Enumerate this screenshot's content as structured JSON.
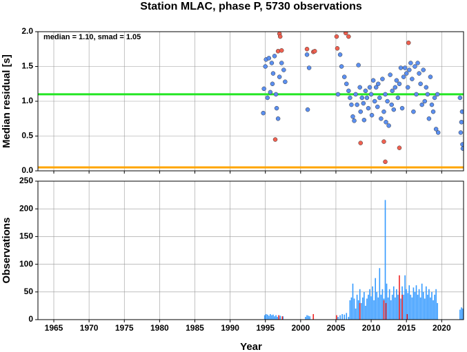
{
  "title": "Station MLAC, phase P, 5730 observations",
  "x_label": "Year",
  "chart_data": [
    {
      "type": "scatter",
      "y_label": "Median residual [s]",
      "annotation": "median = 1.10, smad = 1.05",
      "xlim": [
        1962.75,
        2023.1
      ],
      "ylim": [
        0,
        2
      ],
      "xticks": [
        1965,
        1970,
        1975,
        1980,
        1985,
        1990,
        1995,
        2000,
        2005,
        2010,
        2015,
        2020
      ],
      "yticks": [
        {
          "value": 0,
          "label": "0.0"
        },
        {
          "value": 0.5,
          "label": "0.5"
        },
        {
          "value": 1,
          "label": "1.0"
        },
        {
          "value": 1.5,
          "label": "1.5"
        },
        {
          "value": 2,
          "label": "2.0"
        }
      ],
      "grid": true,
      "hlines": [
        {
          "value": 1.1,
          "color": "#22e622"
        },
        {
          "value": 0.05,
          "color": "#ffa500"
        }
      ],
      "series": [
        {
          "color": "#5b8ff0",
          "x": [
            1994.7,
            1994.8,
            1995.0,
            1995.1,
            1995.3,
            1995.5,
            1995.7,
            1995.9,
            1996.0,
            1996.1,
            1996.3,
            1996.5,
            1996.6,
            1996.8,
            1997.0,
            1997.3,
            1997.6,
            1997.8,
            2000.9,
            2001.0,
            2001.2,
            2005.3,
            2005.6,
            2005.8,
            2006.2,
            2006.5,
            2006.8,
            2007.0,
            2007.2,
            2007.4,
            2007.6,
            2007.8,
            2008.0,
            2008.2,
            2008.4,
            2008.5,
            2008.7,
            2008.9,
            2009.0,
            2009.2,
            2009.4,
            2009.6,
            2009.8,
            2010.0,
            2010.1,
            2010.3,
            2010.5,
            2010.7,
            2010.9,
            2011.0,
            2011.2,
            2011.4,
            2011.6,
            2011.8,
            2012.0,
            2012.1,
            2012.3,
            2012.5,
            2012.7,
            2012.9,
            2013.0,
            2013.2,
            2013.4,
            2013.6,
            2013.8,
            2014.0,
            2014.2,
            2014.4,
            2014.6,
            2014.8,
            2015.0,
            2015.2,
            2015.4,
            2015.6,
            2015.8,
            2016.0,
            2016.2,
            2016.4,
            2016.6,
            2016.8,
            2017.0,
            2017.2,
            2017.4,
            2017.6,
            2017.8,
            2018.0,
            2018.2,
            2018.4,
            2018.6,
            2018.8,
            2019.0,
            2019.2,
            2019.4,
            2019.5,
            2022.6,
            2022.7,
            2022.8,
            2022.9,
            2023.0,
            2022.95
          ],
          "values": [
            0.83,
            1.18,
            1.5,
            1.6,
            1.05,
            1.62,
            1.13,
            1.55,
            1.25,
            1.4,
            1.65,
            1.1,
            0.9,
            0.75,
            1.35,
            1.55,
            1.45,
            1.28,
            1.67,
            0.88,
            1.48,
            1.1,
            1.67,
            1.5,
            1.35,
            1.25,
            1.15,
            1.05,
            0.95,
            0.78,
            0.72,
            1.1,
            0.95,
            1.52,
            1.2,
            0.85,
            1.05,
            0.97,
            0.73,
            1.15,
            1.05,
            0.9,
            1.2,
            1.1,
            0.8,
            1.3,
            1.0,
            1.2,
            0.92,
            1.25,
            1.05,
            0.75,
            1.32,
            0.85,
            1.1,
            0.7,
            1.0,
            0.65,
            1.38,
            0.95,
            1.15,
            0.88,
            1.2,
            1.3,
            1.05,
            1.25,
            1.48,
            0.9,
            1.35,
            1.48,
            1.4,
            1.2,
            1.45,
            1.55,
            1.32,
            0.85,
            1.5,
            1.1,
            1.55,
            1.4,
            1.25,
            0.95,
            1.45,
            1.0,
            1.2,
            1.1,
            0.75,
            1.35,
            0.95,
            0.85,
            1.05,
            0.6,
            1.1,
            0.55,
            1.05,
            0.55,
            0.7,
            0.85,
            0.32,
            0.38
          ]
        },
        {
          "color": "#f06050",
          "x": [
            1996.4,
            1996.8,
            1997.0,
            1997.1,
            1997.3,
            2000.9,
            2001.8,
            2002.0,
            2005.1,
            2005.2,
            2006.4,
            2006.8,
            2008.5,
            2011.8,
            2012.0,
            2014.0,
            2015.3
          ],
          "values": [
            0.45,
            1.72,
            1.97,
            1.93,
            1.73,
            1.75,
            1.71,
            1.72,
            1.93,
            1.76,
            1.98,
            1.93,
            0.4,
            0.42,
            0.13,
            0.33,
            1.84
          ]
        }
      ]
    },
    {
      "type": "bar",
      "y_label": "Observations",
      "xlim": [
        1962.75,
        2023.1
      ],
      "ylim": [
        0,
        250
      ],
      "xticks": [
        1965,
        1970,
        1975,
        1980,
        1985,
        1990,
        1995,
        2000,
        2005,
        2010,
        2015,
        2020
      ],
      "yticks": [
        0,
        50,
        100,
        150,
        200,
        250
      ],
      "grid": true,
      "series": [
        {
          "color": "#3399ff",
          "x": [
            1994.9,
            1995.1,
            1995.3,
            1995.5,
            1995.7,
            1995.9,
            1996.1,
            1996.3,
            1996.5,
            1996.7,
            1997.1,
            1997.5,
            2000.7,
            2000.9,
            2001.1,
            2001.3,
            2005.3,
            2005.6,
            2005.9,
            2006.2,
            2006.5,
            2006.8,
            2007.0,
            2007.2,
            2007.4,
            2007.6,
            2007.8,
            2008.0,
            2008.2,
            2008.4,
            2008.6,
            2008.8,
            2009.0,
            2009.2,
            2009.4,
            2009.6,
            2009.8,
            2010.0,
            2010.2,
            2010.4,
            2010.6,
            2010.8,
            2011.0,
            2011.2,
            2011.4,
            2011.6,
            2011.8,
            2012.0,
            2012.2,
            2012.4,
            2012.6,
            2012.8,
            2013.0,
            2013.2,
            2013.4,
            2013.6,
            2013.8,
            2014.0,
            2014.2,
            2014.4,
            2014.6,
            2014.8,
            2015.0,
            2015.2,
            2015.4,
            2015.6,
            2015.8,
            2016.0,
            2016.2,
            2016.4,
            2016.6,
            2016.8,
            2017.0,
            2017.2,
            2017.4,
            2017.6,
            2017.8,
            2018.0,
            2018.2,
            2018.4,
            2018.6,
            2018.8,
            2019.0,
            2019.2,
            2019.4,
            2022.6,
            2022.8,
            2023.0
          ],
          "values": [
            8,
            10,
            9,
            7,
            10,
            8,
            9,
            6,
            8,
            5,
            7,
            6,
            5,
            8,
            7,
            6,
            5,
            8,
            10,
            9,
            12,
            5,
            35,
            40,
            65,
            38,
            20,
            45,
            35,
            55,
            30,
            40,
            50,
            25,
            38,
            45,
            55,
            42,
            60,
            35,
            75,
            50,
            40,
            93,
            45,
            55,
            38,
            216,
            65,
            40,
            55,
            35,
            45,
            60,
            40,
            55,
            45,
            50,
            38,
            60,
            45,
            80,
            55,
            48,
            62,
            45,
            40,
            58,
            50,
            62,
            45,
            55,
            40,
            65,
            50,
            38,
            60,
            45,
            55,
            40,
            50,
            35,
            45,
            55,
            30,
            18,
            22,
            20
          ]
        },
        {
          "color": "#ee2222",
          "x": [
            1996.9,
            1997.4,
            2001.8,
            2005.1,
            2008.4,
            2011.8,
            2012.1,
            2014.0,
            2014.4,
            2015.1
          ],
          "values": [
            8,
            6,
            10,
            8,
            30,
            35,
            30,
            80,
            45,
            10
          ]
        }
      ]
    }
  ]
}
